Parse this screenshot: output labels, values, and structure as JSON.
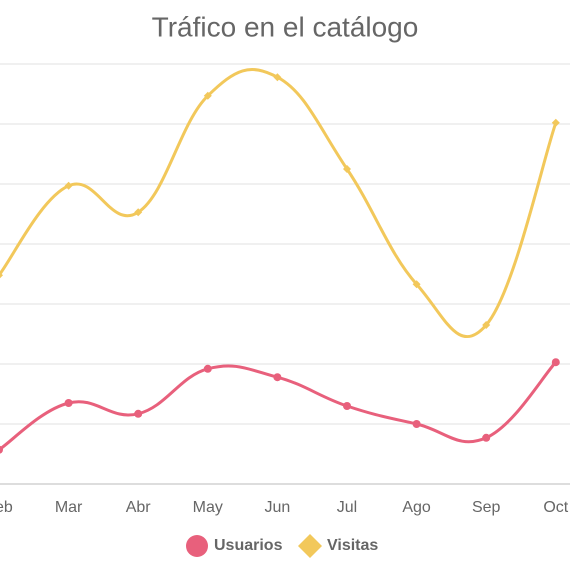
{
  "chart_data": {
    "type": "line",
    "title": "Tráfico en el catálogo",
    "categories": [
      "Feb",
      "Mar",
      "Abr",
      "May",
      "Jun",
      "Jul",
      "Ago",
      "Sep",
      "Oct"
    ],
    "series": [
      {
        "name": "Usuarios",
        "color": "#e8607c",
        "marker": "circle",
        "values": [
          0.57,
          1.35,
          1.17,
          1.92,
          1.78,
          1.3,
          1.0,
          0.77,
          2.03
        ]
      },
      {
        "name": "Visitas",
        "color": "#f2c85b",
        "marker": "diamond",
        "values": [
          3.48,
          4.97,
          4.53,
          6.47,
          6.78,
          5.25,
          3.33,
          2.65,
          6.02
        ]
      }
    ],
    "ylim": [
      0,
      7
    ],
    "yticks": [
      0,
      1,
      2,
      3,
      4,
      5,
      6,
      7
    ],
    "grid": true
  }
}
